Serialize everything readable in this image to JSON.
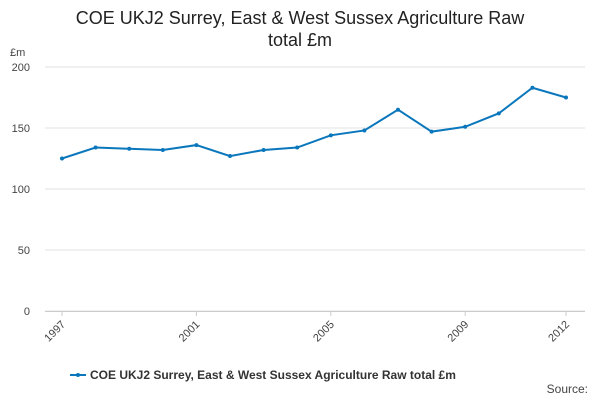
{
  "chart_data": {
    "type": "line",
    "title": "COE UKJ2 Surrey, East & West Sussex Agriculture Raw total £m",
    "y_label": "£m",
    "source": "Source:",
    "x": [
      1997,
      1998,
      1999,
      2000,
      2001,
      2002,
      2003,
      2004,
      2005,
      2006,
      2007,
      2008,
      2009,
      2010,
      2011,
      2012
    ],
    "series": [
      {
        "name": "COE UKJ2 Surrey, East & West Sussex Agriculture Raw total £m",
        "color": "#0a77bd",
        "values": [
          125,
          134,
          133,
          132,
          136,
          127,
          132,
          134,
          144,
          148,
          165,
          147,
          151,
          162,
          183,
          175
        ]
      }
    ],
    "xlim": [
      1997,
      2012
    ],
    "xticks": [
      1997,
      2001,
      2005,
      2009,
      2012
    ],
    "ylim": [
      0,
      200
    ],
    "yticks": [
      0,
      50,
      100,
      150,
      200
    ],
    "grid": true,
    "legend": "bottom"
  }
}
